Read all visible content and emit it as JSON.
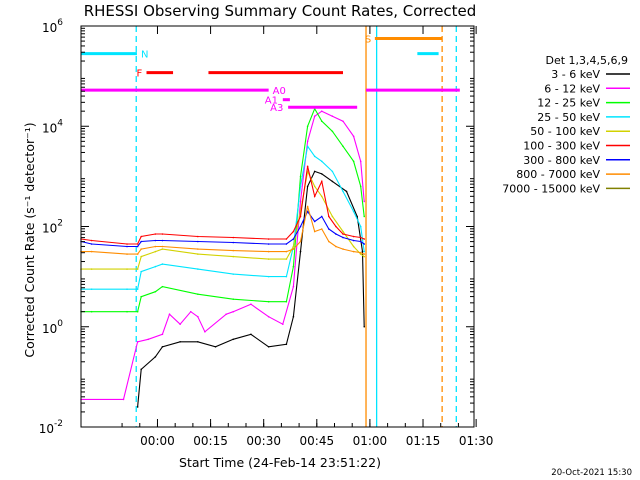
{
  "chart_data": {
    "type": "line",
    "title": "RHESSI Observing Summary Count Rates, Corrected",
    "xlabel": "Start Time (24-Feb-14 23:51:22)",
    "ylabel": "Corrected Count Rate (s⁻¹ detector⁻¹)",
    "x_unit": "minutes after 24-Feb-14 23:51:22",
    "xlim": [
      -13,
      98
    ],
    "ylim_log10": [
      -2,
      6
    ],
    "y_scale": "log",
    "x_ticks": [
      {
        "label": "00:00",
        "x": 8.6
      },
      {
        "label": "00:15",
        "x": 23.6
      },
      {
        "label": "00:30",
        "x": 38.6
      },
      {
        "label": "00:45",
        "x": 53.6
      },
      {
        "label": "01:00",
        "x": 68.6
      },
      {
        "label": "01:15",
        "x": 83.6
      },
      {
        "label": "01:30",
        "x": 98.6
      }
    ],
    "y_ticks": [
      {
        "base": "10",
        "exp": "-2",
        "value_log10": -2
      },
      {
        "base": "10",
        "exp": "0",
        "value_log10": 0
      },
      {
        "base": "10",
        "exp": "2",
        "value_log10": 2
      },
      {
        "base": "10",
        "exp": "4",
        "value_log10": 4
      },
      {
        "base": "10",
        "exp": "6",
        "value_log10": 6
      }
    ],
    "legend_header": "Det 1,3,4,5,6,9",
    "legend_placement": "right",
    "series": [
      {
        "name": "3 - 6 keV",
        "color": "#000000",
        "points": [
          [
            -13,
            null
          ],
          [
            -10,
            null
          ],
          [
            -5,
            null
          ],
          [
            0,
            null
          ],
          [
            3,
            -1.6
          ],
          [
            4,
            -0.85
          ],
          [
            8,
            -0.6
          ],
          [
            10,
            -0.4
          ],
          [
            15,
            -0.3
          ],
          [
            20,
            -0.3
          ],
          [
            25,
            -0.4
          ],
          [
            30,
            -0.25
          ],
          [
            35,
            -0.15
          ],
          [
            40,
            -0.4
          ],
          [
            45,
            -0.35
          ],
          [
            47,
            0.2
          ],
          [
            49,
            1.5
          ],
          [
            51,
            2.8
          ],
          [
            53,
            3.1
          ],
          [
            55,
            3.05
          ],
          [
            58,
            2.9
          ],
          [
            62,
            2.7
          ],
          [
            65,
            2.2
          ],
          [
            66.5,
            1.5
          ],
          [
            67,
            0
          ]
        ]
      },
      {
        "name": "6 - 12 keV",
        "color": "#ff00ff",
        "points": [
          [
            -13,
            -1.45
          ],
          [
            -1,
            -1.45
          ],
          [
            3,
            -0.3
          ],
          [
            6,
            -0.25
          ],
          [
            10,
            -0.15
          ],
          [
            12,
            0.25
          ],
          [
            15,
            0.05
          ],
          [
            18,
            0.3
          ],
          [
            20,
            0.2
          ],
          [
            22,
            -0.1
          ],
          [
            28,
            0.25
          ],
          [
            30,
            0.3
          ],
          [
            35,
            0.45
          ],
          [
            40,
            0.2
          ],
          [
            44,
            0.05
          ],
          [
            47,
            0.8
          ],
          [
            49,
            2.5
          ],
          [
            51,
            3.7
          ],
          [
            53,
            4.2
          ],
          [
            55,
            4.3
          ],
          [
            58,
            4.2
          ],
          [
            61,
            4.1
          ],
          [
            64,
            3.8
          ],
          [
            66,
            3.3
          ],
          [
            67,
            2.5
          ]
        ]
      },
      {
        "name": "12 - 25 keV",
        "color": "#00ff00",
        "points": [
          [
            -13,
            0.3
          ],
          [
            -10,
            0.3
          ],
          [
            0,
            0.3
          ],
          [
            3,
            0.3
          ],
          [
            4,
            0.6
          ],
          [
            8,
            0.7
          ],
          [
            10,
            0.8
          ],
          [
            20,
            0.65
          ],
          [
            30,
            0.55
          ],
          [
            40,
            0.5
          ],
          [
            45,
            0.5
          ],
          [
            47,
            1.2
          ],
          [
            49,
            3.0
          ],
          [
            51,
            4.0
          ],
          [
            53,
            4.35
          ],
          [
            55,
            4.1
          ],
          [
            58,
            3.9
          ],
          [
            61,
            3.6
          ],
          [
            64,
            3.3
          ],
          [
            66,
            2.8
          ],
          [
            67,
            2.2
          ]
        ]
      },
      {
        "name": "25 - 50 keV",
        "color": "#00e5ff",
        "points": [
          [
            -13,
            0.75
          ],
          [
            -10,
            0.75
          ],
          [
            0,
            0.75
          ],
          [
            3,
            0.75
          ],
          [
            4,
            1.1
          ],
          [
            8,
            1.2
          ],
          [
            10,
            1.25
          ],
          [
            20,
            1.15
          ],
          [
            30,
            1.05
          ],
          [
            40,
            1.0
          ],
          [
            45,
            1.0
          ],
          [
            47,
            1.6
          ],
          [
            49,
            2.8
          ],
          [
            51,
            3.6
          ],
          [
            53,
            3.4
          ],
          [
            55,
            3.3
          ],
          [
            58,
            3.1
          ],
          [
            61,
            2.7
          ],
          [
            64,
            2.3
          ],
          [
            66,
            2.0
          ],
          [
            67,
            1.5
          ]
        ]
      },
      {
        "name": "50 - 100 keV",
        "color": "#d2d200",
        "points": [
          [
            -13,
            1.15
          ],
          [
            -10,
            1.15
          ],
          [
            0,
            1.15
          ],
          [
            3,
            1.15
          ],
          [
            4,
            1.4
          ],
          [
            8,
            1.5
          ],
          [
            10,
            1.55
          ],
          [
            20,
            1.45
          ],
          [
            30,
            1.4
          ],
          [
            40,
            1.35
          ],
          [
            45,
            1.35
          ],
          [
            47,
            1.6
          ],
          [
            49,
            2.3
          ],
          [
            51,
            3.1
          ],
          [
            53,
            2.8
          ],
          [
            55,
            2.6
          ],
          [
            58,
            2.2
          ],
          [
            61,
            1.9
          ],
          [
            64,
            1.6
          ],
          [
            66,
            1.45
          ],
          [
            67,
            1.4
          ]
        ]
      },
      {
        "name": "100 - 300 keV",
        "color": "#ff0000",
        "points": [
          [
            -13,
            1.75
          ],
          [
            -10,
            1.72
          ],
          [
            0,
            1.65
          ],
          [
            3,
            1.65
          ],
          [
            4,
            1.8
          ],
          [
            8,
            1.85
          ],
          [
            10,
            1.85
          ],
          [
            20,
            1.8
          ],
          [
            30,
            1.78
          ],
          [
            40,
            1.75
          ],
          [
            45,
            1.75
          ],
          [
            47,
            1.9
          ],
          [
            49,
            2.2
          ],
          [
            51,
            3.2
          ],
          [
            53,
            2.6
          ],
          [
            55,
            2.9
          ],
          [
            57,
            2.2
          ],
          [
            59,
            2.0
          ],
          [
            61,
            1.85
          ],
          [
            64,
            1.8
          ],
          [
            66,
            1.78
          ],
          [
            67,
            1.75
          ]
        ]
      },
      {
        "name": "300 - 800 keV",
        "color": "#0000ff",
        "points": [
          [
            -13,
            1.7
          ],
          [
            -10,
            1.65
          ],
          [
            0,
            1.6
          ],
          [
            3,
            1.6
          ],
          [
            4,
            1.7
          ],
          [
            8,
            1.72
          ],
          [
            10,
            1.72
          ],
          [
            20,
            1.7
          ],
          [
            30,
            1.68
          ],
          [
            40,
            1.65
          ],
          [
            45,
            1.65
          ],
          [
            47,
            1.75
          ],
          [
            49,
            2.0
          ],
          [
            51,
            2.3
          ],
          [
            53,
            2.1
          ],
          [
            55,
            2.2
          ],
          [
            57,
            1.95
          ],
          [
            59,
            1.85
          ],
          [
            61,
            1.78
          ],
          [
            64,
            1.72
          ],
          [
            66,
            1.7
          ],
          [
            67,
            1.65
          ]
        ]
      },
      {
        "name": "800 - 7000 keV",
        "color": "#ff8c00",
        "points": [
          [
            -13,
            1.5
          ],
          [
            -10,
            1.5
          ],
          [
            0,
            1.45
          ],
          [
            3,
            1.45
          ],
          [
            4,
            1.55
          ],
          [
            8,
            1.6
          ],
          [
            10,
            1.6
          ],
          [
            20,
            1.55
          ],
          [
            30,
            1.52
          ],
          [
            40,
            1.5
          ],
          [
            45,
            1.5
          ],
          [
            47,
            1.55
          ],
          [
            49,
            1.7
          ],
          [
            51,
            2.4
          ],
          [
            53,
            1.9
          ],
          [
            55,
            1.95
          ],
          [
            57,
            1.7
          ],
          [
            59,
            1.6
          ],
          [
            61,
            1.55
          ],
          [
            64,
            1.5
          ],
          [
            66,
            1.48
          ],
          [
            67,
            1.45
          ]
        ]
      },
      {
        "name": "7000 - 15000 keV",
        "color": "#808000",
        "points": []
      }
    ],
    "attenuator_bars": [
      {
        "label": "N",
        "color": "#00e5ff",
        "y": 5.45,
        "segments": [
          [
            -13,
            2.8
          ],
          [
            82,
            88
          ]
        ]
      },
      {
        "label": "F",
        "color": "#ff0000",
        "y": 5.07,
        "segments": [
          [
            5.5,
            13
          ],
          [
            23,
            61
          ]
        ]
      },
      {
        "label": "A0",
        "color": "#ff00ff",
        "y": 4.72,
        "segments": [
          [
            -13,
            40
          ],
          [
            67.5,
            94
          ]
        ]
      },
      {
        "label": "S",
        "color": "#ff8c00",
        "y": 5.75,
        "segments": [
          [
            70,
            89
          ]
        ]
      },
      {
        "label": "A1",
        "color": "#ff00ff",
        "y": 4.53,
        "segments": [
          [
            44,
            46
          ]
        ]
      },
      {
        "label": "A3",
        "color": "#ff00ff",
        "y": 4.38,
        "segments": [
          [
            45.5,
            65
          ]
        ]
      }
    ],
    "vertical_markers": [
      {
        "x": 2.6,
        "color": "#00e5ff",
        "style": "dashed"
      },
      {
        "x": 67.5,
        "color": "#ff8c00",
        "style": "solid"
      },
      {
        "x": 70.5,
        "color": "#00e5ff",
        "style": "solid"
      },
      {
        "x": 89,
        "color": "#ff8c00",
        "style": "dashed"
      },
      {
        "x": 93,
        "color": "#00e5ff",
        "style": "dashed"
      }
    ]
  },
  "timestamp": "20-Oct-2021 15:30"
}
